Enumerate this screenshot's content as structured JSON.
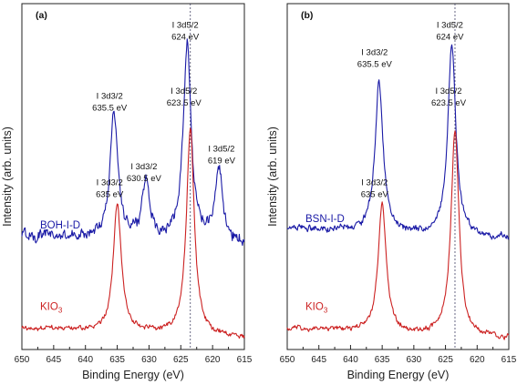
{
  "chart_data": [
    {
      "panel_label": "(a)",
      "type": "line",
      "xlabel": "Binding Energy (eV)",
      "ylabel": "Intensity (arb. units)",
      "xlim": [
        650,
        615
      ],
      "xticks": [
        650,
        645,
        640,
        635,
        630,
        625,
        620,
        615
      ],
      "reference_line_x": 623.5,
      "series": [
        {
          "name": "BOH-I-D",
          "color": "#1a1aa6",
          "baseline": 0.58,
          "noise": 0.024,
          "peaks": [
            {
              "center": 635.5,
              "height": 0.78,
              "width": 0.75
            },
            {
              "center": 630.5,
              "height": 0.35,
              "width": 0.75
            },
            {
              "center": 624.0,
              "height": 1.24,
              "width": 0.75
            },
            {
              "center": 619.0,
              "height": 0.46,
              "width": 0.7
            }
          ]
        },
        {
          "name": "KIO3",
          "name_main": "KIO",
          "name_subscript": "3",
          "color": "#cc2222",
          "baseline": 0.0,
          "noise": 0.01,
          "peaks": [
            {
              "center": 635.0,
              "height": 0.8,
              "width": 0.75
            },
            {
              "center": 623.5,
              "height": 1.28,
              "width": 0.75
            }
          ]
        }
      ],
      "annotations": [
        {
          "lines": [
            "I 3d3/2",
            "635.5 eV"
          ],
          "x": 636.2,
          "y": 1.49
        },
        {
          "lines": [
            "I 3d3/2",
            "630.5 eV"
          ],
          "x": 630.8,
          "y": 1.05
        },
        {
          "lines": [
            "I 3d5/2",
            "624 eV"
          ],
          "x": 624.3,
          "y": 1.93
        },
        {
          "lines": [
            "I 3d5/2",
            "619 eV"
          ],
          "x": 618.6,
          "y": 1.16
        },
        {
          "lines": [
            "I 3d3/2",
            "635 eV"
          ],
          "x": 636.2,
          "y": 0.95
        },
        {
          "lines": [
            "I 3d5/2",
            "623.5 eV"
          ],
          "x": 624.5,
          "y": 1.52
        }
      ]
    },
    {
      "panel_label": "(b)",
      "type": "line",
      "xlabel": "Binding Energy (eV)",
      "ylabel": "Intensity (arb. units)",
      "xlim": [
        650,
        615
      ],
      "xticks": [
        650,
        645,
        640,
        635,
        630,
        625,
        620,
        615
      ],
      "reference_line_x": 623.5,
      "series": [
        {
          "name": "BSN-I-D",
          "color": "#1a1aa6",
          "baseline": 0.62,
          "noise": 0.013,
          "peaks": [
            {
              "center": 635.5,
              "height": 0.93,
              "width": 0.75
            },
            {
              "center": 624.0,
              "height": 1.2,
              "width": 0.75
            }
          ]
        },
        {
          "name": "KIO3",
          "name_main": "KIO",
          "name_subscript": "3",
          "color": "#cc2222",
          "baseline": 0.0,
          "noise": 0.01,
          "peaks": [
            {
              "center": 635.0,
              "height": 0.8,
              "width": 0.75
            },
            {
              "center": 623.5,
              "height": 1.28,
              "width": 0.75
            }
          ]
        }
      ],
      "annotations": [
        {
          "lines": [
            "I 3d3/2",
            "635.5 eV"
          ],
          "x": 636.2,
          "y": 1.76
        },
        {
          "lines": [
            "I 3d5/2",
            "624 eV"
          ],
          "x": 624.3,
          "y": 1.93
        },
        {
          "lines": [
            "I 3d3/2",
            "635 eV"
          ],
          "x": 636.2,
          "y": 0.95
        },
        {
          "lines": [
            "I 3d5/2",
            "623.5 eV"
          ],
          "x": 624.5,
          "y": 1.52
        }
      ]
    }
  ]
}
